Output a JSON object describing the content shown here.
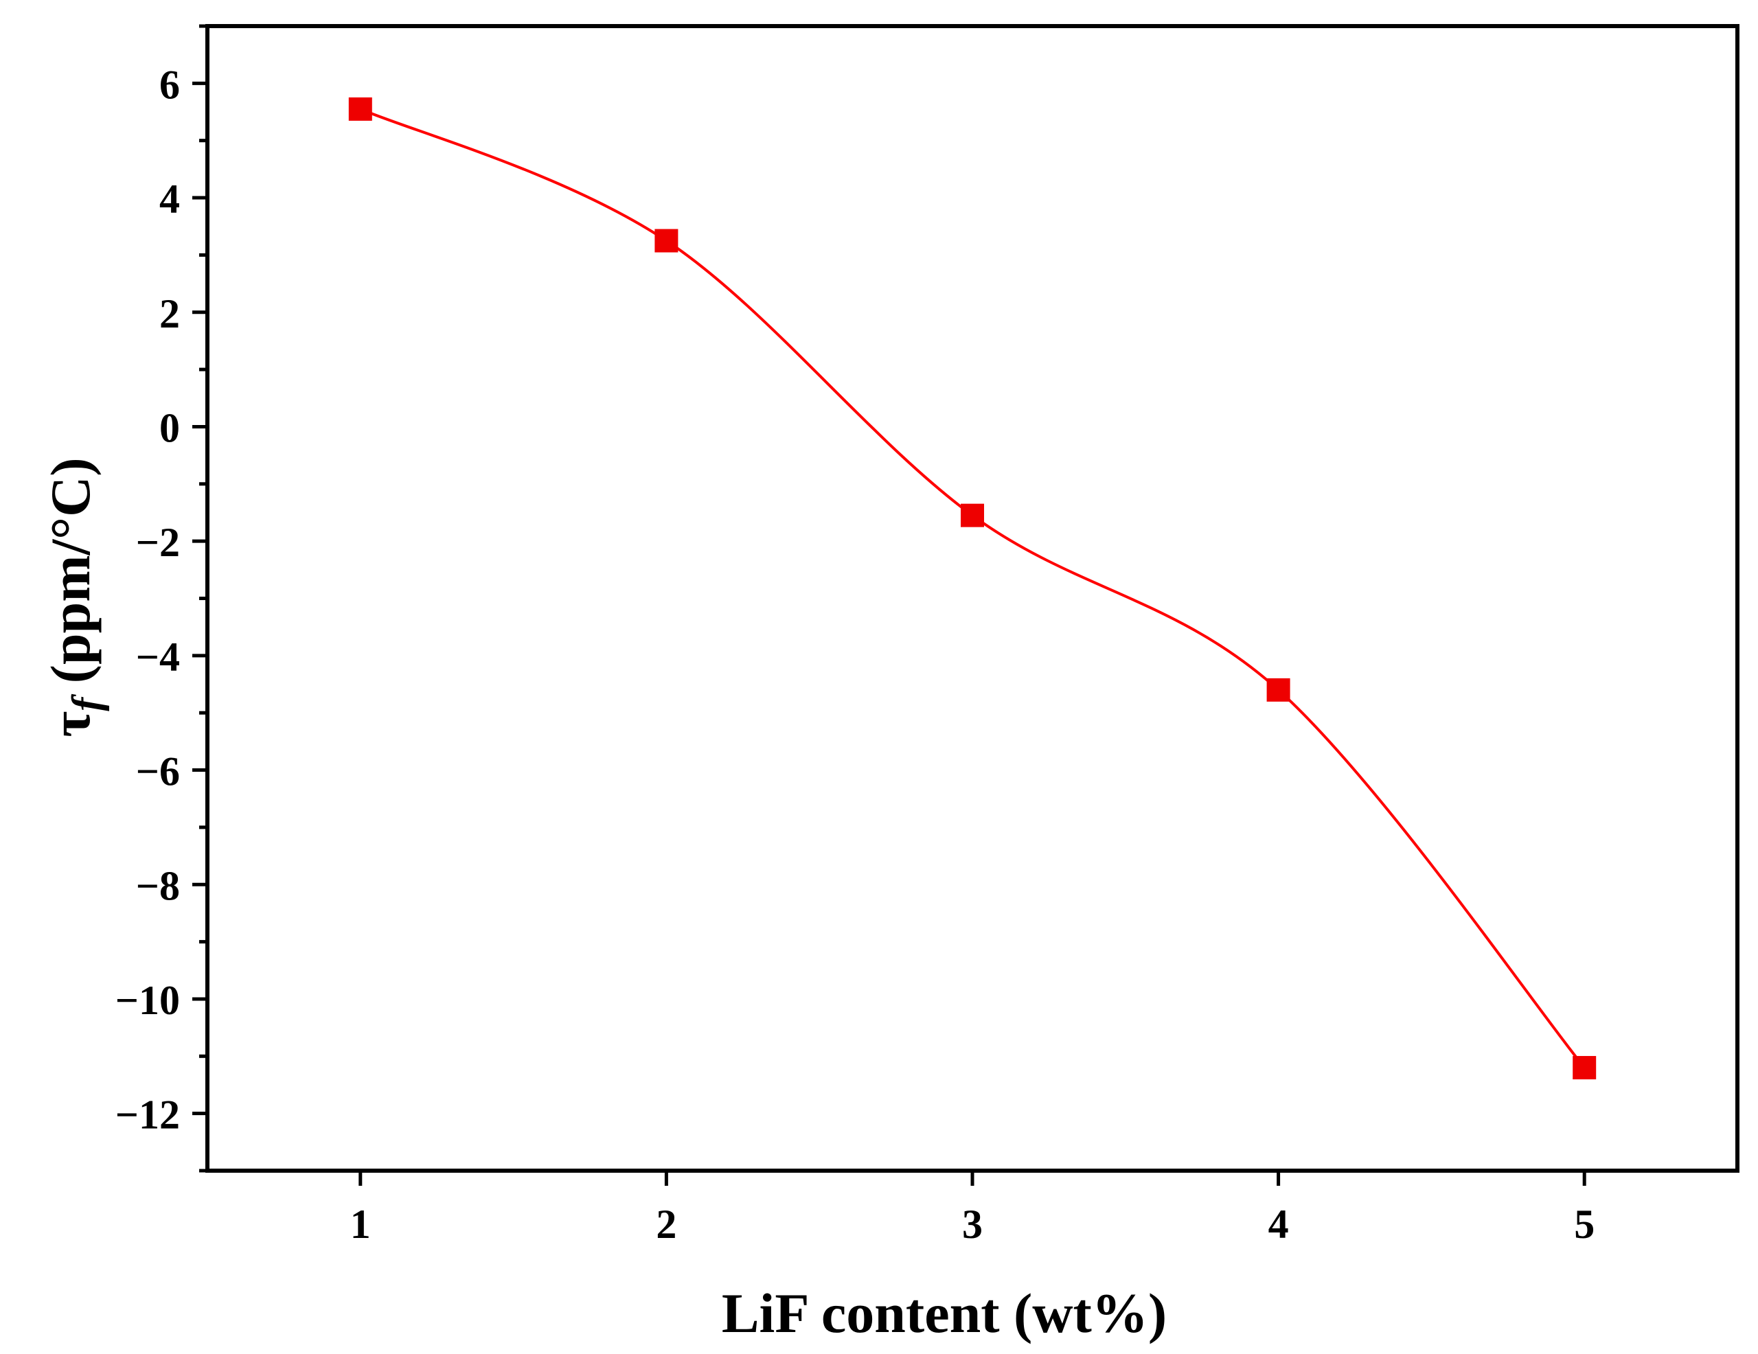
{
  "chart_data": {
    "type": "line",
    "xlabel": "LiF content (wt%)",
    "ylabel_symbol": "τ",
    "ylabel_subscript": "f",
    "ylabel_unit": " (ppm/°C)",
    "x": [
      1,
      2,
      3,
      4,
      5
    ],
    "series": [
      {
        "values": [
          5.55,
          3.25,
          -1.55,
          -4.6,
          -11.2
        ]
      }
    ],
    "xlim": [
      0.5,
      5.5
    ],
    "ylim": [
      -13,
      7
    ],
    "xticks": [
      1,
      2,
      3,
      4,
      5
    ],
    "xtick_labels": [
      "1",
      "2",
      "3",
      "4",
      "5"
    ],
    "yticks": [
      6,
      4,
      2,
      0,
      -2,
      -4,
      -6,
      -8,
      -10,
      -12
    ],
    "ytick_labels": [
      "6",
      "4",
      "2",
      "0",
      "−2",
      "−4",
      "−6",
      "−8",
      "−10",
      "−12"
    ],
    "grid": false,
    "marker": "square",
    "line_color": "#ff0000",
    "marker_color": "#ee0000",
    "axis_color": "#000000"
  }
}
